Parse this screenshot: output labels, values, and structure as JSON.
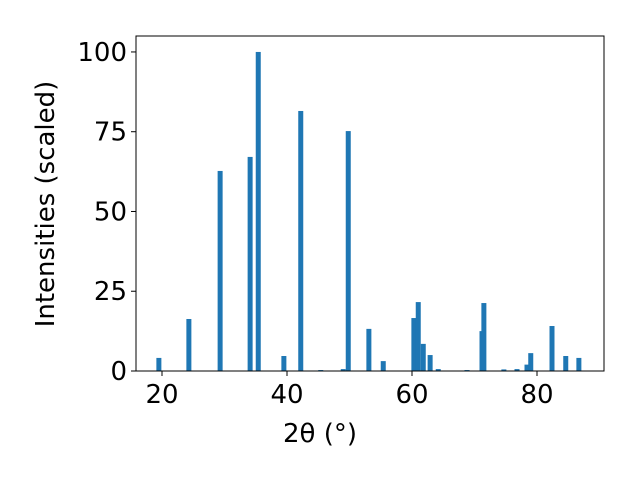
{
  "chart_data": {
    "type": "bar",
    "xlabel": "2θ (°)",
    "ylabel": "Intensities (scaled)",
    "x": [
      19.5,
      24.3,
      29.3,
      34.1,
      35.4,
      39.5,
      42.2,
      45.4,
      49.0,
      49.8,
      53.1,
      55.4,
      60.3,
      61.0,
      61.8,
      62.9,
      64.2,
      68.8,
      71.2,
      71.5,
      74.7,
      76.8,
      78.4,
      79.0,
      82.4,
      84.6,
      86.7
    ],
    "values": [
      4.1,
      16.3,
      62.7,
      67.1,
      100,
      4.7,
      81.5,
      0.3,
      0.6,
      75.2,
      13.2,
      3.1,
      16.6,
      21.6,
      8.5,
      5.0,
      0.6,
      0.3,
      12.5,
      21.3,
      0.5,
      0.6,
      2.0,
      5.6,
      14.1,
      4.7,
      4.1
    ],
    "color": "#1f77b4",
    "xlim": [
      15.84,
      90.72
    ],
    "ylim": [
      0,
      105.0
    ],
    "xticks": [
      20,
      40,
      60,
      80
    ],
    "yticks": [
      0,
      25,
      50,
      75,
      100
    ]
  }
}
